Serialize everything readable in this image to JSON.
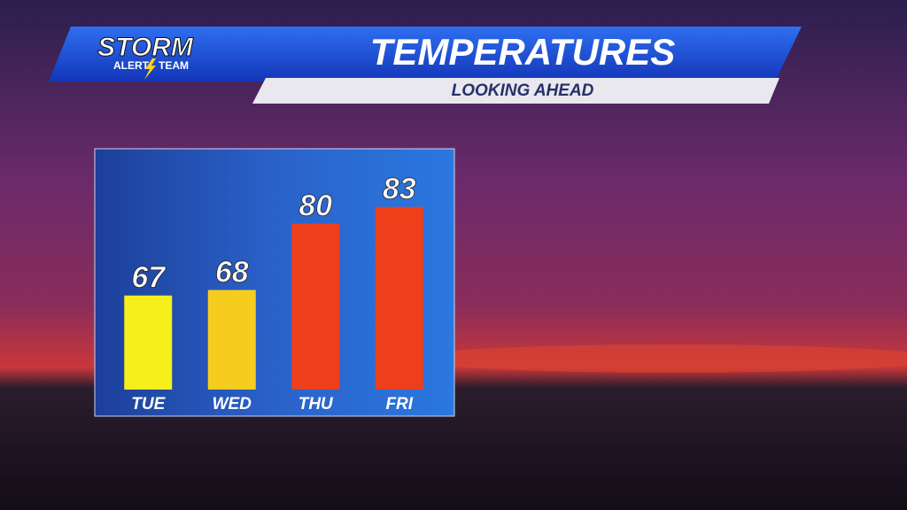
{
  "brand": [
    "STORM",
    "ALERT",
    "TEAM"
  ],
  "chart_data": {
    "type": "bar",
    "title": "TEMPERATURES",
    "subtitle": "LOOKING AHEAD",
    "categories": [
      "TUE",
      "WED",
      "THU",
      "FRI"
    ],
    "values": [
      67,
      68,
      80,
      83
    ],
    "colors": [
      "#f7ef1c",
      "#f6cd1f",
      "#ee3f1b",
      "#ee3f1b"
    ],
    "ylim": [
      50,
      90
    ]
  }
}
